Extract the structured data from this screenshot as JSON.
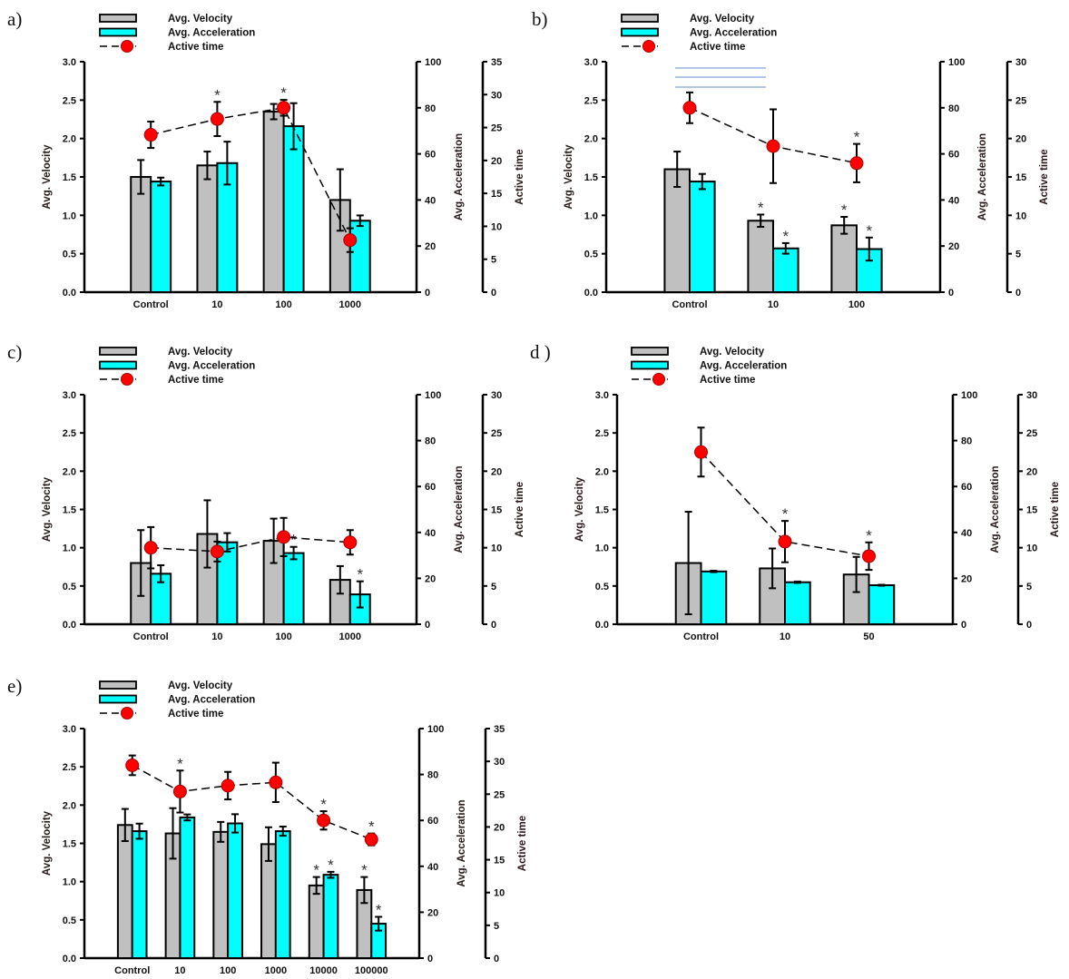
{
  "colors": {
    "velocity": "#c0c0c0",
    "acceleration": "#00ffff",
    "active_time": "#ff0000",
    "outline": "#000000"
  },
  "chart_data": [
    {
      "panel_label": "a)",
      "type": "bar",
      "categories": [
        "Control",
        "10",
        "100",
        "1000"
      ],
      "axes": [
        {
          "label": "Avg. Velocity",
          "range": [
            0,
            3
          ],
          "step": 0.5,
          "decimals": 1
        },
        {
          "label": "Avg. Acceleration",
          "range": [
            0,
            100
          ],
          "step": 20,
          "decimals": 0
        },
        {
          "label": "Active time",
          "range": [
            0,
            35
          ],
          "step": 5,
          "decimals": 0
        }
      ],
      "series": [
        {
          "name": "Avg. Velocity",
          "kind": "bar",
          "axis": 0,
          "values": [
            1.5,
            1.65,
            2.35,
            1.2
          ],
          "errors": [
            0.22,
            0.18,
            0.1,
            0.4
          ],
          "significant": []
        },
        {
          "name": "Avg. Acceleration",
          "kind": "bar",
          "axis": 1,
          "values": [
            48,
            56,
            72,
            31
          ],
          "errors": [
            1.7,
            9.3,
            10,
            2.3
          ],
          "significant": []
        },
        {
          "name": "Active time",
          "kind": "line",
          "axis": 2,
          "values": [
            23.9,
            26.3,
            28,
            7.9
          ],
          "errors": [
            2,
            2.6,
            1.2,
            1.8
          ],
          "significant": [
            1,
            2
          ]
        }
      ]
    },
    {
      "panel_label": "b)",
      "type": "bar",
      "categories": [
        "Control",
        "10",
        "100"
      ],
      "axes": [
        {
          "label": "Avg. Velocity",
          "range": [
            0,
            3
          ],
          "step": 0.5,
          "decimals": 1
        },
        {
          "label": "Avg. Acceleration",
          "range": [
            0,
            100
          ],
          "step": 20,
          "decimals": 0
        },
        {
          "label": "Active time",
          "range": [
            0,
            30
          ],
          "step": 5,
          "decimals": 0
        }
      ],
      "series": [
        {
          "name": "Avg. Velocity",
          "kind": "bar",
          "axis": 0,
          "values": [
            1.6,
            0.93,
            0.87
          ],
          "errors": [
            0.23,
            0.08,
            0.11
          ],
          "significant": [
            1,
            2
          ]
        },
        {
          "name": "Avg. Acceleration",
          "kind": "bar",
          "axis": 1,
          "values": [
            48,
            19,
            18.7
          ],
          "errors": [
            3.3,
            2.3,
            5
          ],
          "significant": [
            1,
            2
          ]
        },
        {
          "name": "Active time",
          "kind": "line",
          "axis": 2,
          "values": [
            24,
            19,
            16.8
          ],
          "errors": [
            2,
            4.8,
            2.5
          ],
          "significant": [
            2
          ]
        }
      ]
    },
    {
      "panel_label": "c)",
      "type": "bar",
      "categories": [
        "Control",
        "10",
        "100",
        "1000"
      ],
      "axes": [
        {
          "label": "Avg. Velocity",
          "range": [
            0,
            3
          ],
          "step": 0.5,
          "decimals": 1
        },
        {
          "label": "Avg. Acceleration",
          "range": [
            0,
            100
          ],
          "step": 20,
          "decimals": 0
        },
        {
          "label": "Active time",
          "range": [
            0,
            30
          ],
          "step": 5,
          "decimals": 0
        }
      ],
      "series": [
        {
          "name": "Avg. Velocity",
          "kind": "bar",
          "axis": 0,
          "values": [
            0.8,
            1.18,
            1.09,
            0.58
          ],
          "errors": [
            0.43,
            0.44,
            0.29,
            0.18
          ],
          "significant": []
        },
        {
          "name": "Avg. Acceleration",
          "kind": "bar",
          "axis": 1,
          "values": [
            22,
            35.7,
            31,
            13
          ],
          "errors": [
            3.7,
            4,
            2.7,
            5.7
          ],
          "significant": [
            2,
            3
          ]
        },
        {
          "name": "Active time",
          "kind": "line",
          "axis": 2,
          "values": [
            10,
            9.5,
            11.4,
            10.7
          ],
          "errors": [
            2.7,
            1.3,
            2.5,
            1.6
          ],
          "significant": []
        }
      ]
    },
    {
      "panel_label": "d )",
      "type": "bar",
      "categories": [
        "Control",
        "10",
        "50"
      ],
      "axes": [
        {
          "label": "Avg. Velocity",
          "range": [
            0,
            3
          ],
          "step": 0.5,
          "decimals": 1
        },
        {
          "label": "Avg. Acceleration",
          "range": [
            0,
            100
          ],
          "step": 20,
          "decimals": 0
        },
        {
          "label": "Active time",
          "range": [
            0,
            30
          ],
          "step": 5,
          "decimals": 0
        }
      ],
      "series": [
        {
          "name": "Avg. Velocity",
          "kind": "bar",
          "axis": 0,
          "values": [
            0.8,
            0.73,
            0.65
          ],
          "errors": [
            0.67,
            0.26,
            0.23
          ],
          "significant": []
        },
        {
          "name": "Avg. Acceleration",
          "kind": "bar",
          "axis": 1,
          "values": [
            23,
            18.3,
            17
          ],
          "errors": [
            0.3,
            0.3,
            0.2
          ],
          "significant": []
        },
        {
          "name": "Active time",
          "kind": "line",
          "axis": 2,
          "values": [
            22.5,
            10.8,
            8.9
          ],
          "errors": [
            3.2,
            2.7,
            1.8
          ],
          "significant": [
            1,
            2
          ]
        }
      ]
    },
    {
      "panel_label": "e)",
      "type": "bar",
      "categories": [
        "Control",
        "10",
        "100",
        "1000",
        "10000",
        "100000"
      ],
      "axes": [
        {
          "label": "Avg. Velocity",
          "range": [
            0,
            3
          ],
          "step": 0.5,
          "decimals": 1
        },
        {
          "label": "Avg. Acceleration",
          "range": [
            0,
            100
          ],
          "step": 20,
          "decimals": 0
        },
        {
          "label": "Active time",
          "range": [
            0,
            35
          ],
          "step": 5,
          "decimals": 0
        }
      ],
      "series": [
        {
          "name": "Avg. Velocity",
          "kind": "bar",
          "axis": 0,
          "values": [
            1.74,
            1.63,
            1.65,
            1.49,
            0.95,
            0.89
          ],
          "errors": [
            0.21,
            0.33,
            0.13,
            0.22,
            0.11,
            0.17
          ],
          "significant": [
            4,
            5
          ]
        },
        {
          "name": "Avg. Acceleration",
          "kind": "bar",
          "axis": 1,
          "values": [
            55.3,
            61.3,
            58.7,
            55.3,
            36.3,
            15
          ],
          "errors": [
            3.3,
            1.3,
            4,
            2,
            1.3,
            3
          ],
          "significant": [
            4,
            5
          ]
        },
        {
          "name": "Active time",
          "kind": "line",
          "axis": 2,
          "values": [
            29.4,
            25.4,
            26.3,
            26.8,
            21,
            18.1
          ],
          "errors": [
            1.5,
            3.2,
            2.1,
            3.0,
            1.4,
            0.9
          ],
          "significant": [
            1,
            4,
            5
          ]
        }
      ]
    }
  ],
  "significance_marker": "*"
}
